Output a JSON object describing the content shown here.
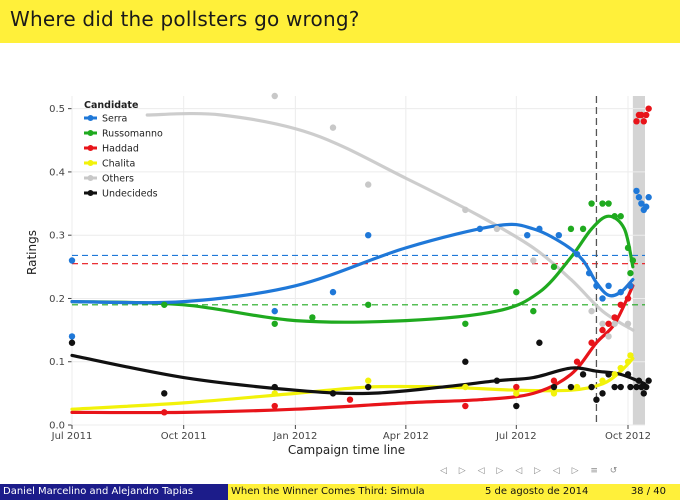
{
  "slide": {
    "title": "Where did the pollsters go wrong?"
  },
  "footer": {
    "authors": "Daniel Marcelino and Alejandro Tapias",
    "talk_title": "When the Winner Comes Third: Simula",
    "date": "5 de agosto de 2014",
    "page": "38 / 40"
  },
  "nav_symbols": [
    "◁",
    "▷",
    "◁",
    "▷",
    "◁",
    "▷",
    "◁",
    "▷",
    "≡",
    "↺"
  ],
  "colors": {
    "title_bar": "#fff03a",
    "footer_left": "#1c1c8a",
    "Serra": "#1f78d8",
    "Russomanno": "#1faa1f",
    "Haddad": "#e8141a",
    "Chalita": "#f2f20a",
    "Others": "#c8c8c8",
    "Undecideds": "#111111"
  },
  "chart_data": {
    "type": "scatter",
    "title": "",
    "xlabel": "Campaign time line",
    "ylabel": "Ratings",
    "x_ticks": [
      "Jul 2011",
      "Oct 2011",
      "Jan 2012",
      "Apr 2012",
      "Jul 2012",
      "Oct 2012"
    ],
    "x_range": [
      "2011-07-01",
      "2012-10-15"
    ],
    "y_ticks": [
      "0.0",
      "0.1",
      "0.2",
      "0.3",
      "0.4",
      "0.5"
    ],
    "ylim": [
      0,
      0.52
    ],
    "legend_title": "Candidate",
    "legend_position": "top-left",
    "grid": true,
    "election_date": "2012-09-05",
    "shaded_region": [
      "2012-10-05",
      "2012-10-20"
    ],
    "reference_lines": [
      {
        "series": "Serra",
        "y": 0.268
      },
      {
        "series": "Haddad",
        "y": 0.255
      },
      {
        "series": "Russomanno",
        "y": 0.19
      }
    ],
    "series": [
      {
        "name": "Serra",
        "points": [
          [
            "2011-07-01",
            0.26
          ],
          [
            "2011-07-01",
            0.14
          ],
          [
            "2011-12-15",
            0.18
          ],
          [
            "2012-02-01",
            0.21
          ],
          [
            "2012-03-01",
            0.3
          ],
          [
            "2012-06-01",
            0.31
          ],
          [
            "2012-07-10",
            0.3
          ],
          [
            "2012-07-20",
            0.31
          ],
          [
            "2012-08-05",
            0.3
          ],
          [
            "2012-08-20",
            0.27
          ],
          [
            "2012-08-30",
            0.24
          ],
          [
            "2012-09-05",
            0.22
          ],
          [
            "2012-09-10",
            0.2
          ],
          [
            "2012-09-15",
            0.22
          ],
          [
            "2012-09-25",
            0.21
          ],
          [
            "2012-10-03",
            0.22
          ],
          [
            "2012-10-08",
            0.37
          ],
          [
            "2012-10-10",
            0.36
          ],
          [
            "2012-10-12",
            0.35
          ],
          [
            "2012-10-14",
            0.34
          ],
          [
            "2012-10-16",
            0.345
          ],
          [
            "2012-10-18",
            0.36
          ]
        ],
        "trend": [
          [
            "2011-07-01",
            0.195
          ],
          [
            "2011-10-01",
            0.195
          ],
          [
            "2012-01-01",
            0.22
          ],
          [
            "2012-04-01",
            0.28
          ],
          [
            "2012-06-15",
            0.315
          ],
          [
            "2012-07-15",
            0.31
          ],
          [
            "2012-08-10",
            0.285
          ],
          [
            "2012-08-25",
            0.26
          ],
          [
            "2012-09-05",
            0.225
          ],
          [
            "2012-09-15",
            0.205
          ],
          [
            "2012-09-25",
            0.21
          ],
          [
            "2012-10-05",
            0.23
          ]
        ]
      },
      {
        "name": "Russomanno",
        "points": [
          [
            "2011-09-15",
            0.19
          ],
          [
            "2011-12-15",
            0.16
          ],
          [
            "2012-01-15",
            0.17
          ],
          [
            "2012-03-01",
            0.19
          ],
          [
            "2012-05-20",
            0.16
          ],
          [
            "2012-07-01",
            0.21
          ],
          [
            "2012-07-15",
            0.18
          ],
          [
            "2012-08-01",
            0.25
          ],
          [
            "2012-08-15",
            0.31
          ],
          [
            "2012-08-25",
            0.31
          ],
          [
            "2012-09-01",
            0.35
          ],
          [
            "2012-09-10",
            0.35
          ],
          [
            "2012-09-15",
            0.35
          ],
          [
            "2012-09-20",
            0.33
          ],
          [
            "2012-09-25",
            0.33
          ],
          [
            "2012-10-01",
            0.28
          ],
          [
            "2012-10-03",
            0.24
          ],
          [
            "2012-10-05",
            0.26
          ]
        ],
        "trend": [
          [
            "2011-07-01",
            0.195
          ],
          [
            "2011-10-01",
            0.19
          ],
          [
            "2012-01-01",
            0.165
          ],
          [
            "2012-04-01",
            0.165
          ],
          [
            "2012-06-15",
            0.18
          ],
          [
            "2012-07-20",
            0.21
          ],
          [
            "2012-08-15",
            0.265
          ],
          [
            "2012-09-01",
            0.31
          ],
          [
            "2012-09-15",
            0.33
          ],
          [
            "2012-09-28",
            0.31
          ],
          [
            "2012-10-05",
            0.25
          ]
        ]
      },
      {
        "name": "Haddad",
        "points": [
          [
            "2011-09-15",
            0.02
          ],
          [
            "2011-12-15",
            0.03
          ],
          [
            "2012-02-15",
            0.04
          ],
          [
            "2012-05-20",
            0.03
          ],
          [
            "2012-07-01",
            0.06
          ],
          [
            "2012-08-01",
            0.07
          ],
          [
            "2012-08-20",
            0.1
          ],
          [
            "2012-09-01",
            0.13
          ],
          [
            "2012-09-10",
            0.15
          ],
          [
            "2012-09-15",
            0.16
          ],
          [
            "2012-09-20",
            0.17
          ],
          [
            "2012-09-25",
            0.19
          ],
          [
            "2012-10-01",
            0.2
          ],
          [
            "2012-10-03",
            0.22
          ],
          [
            "2012-10-08",
            0.48
          ],
          [
            "2012-10-10",
            0.49
          ],
          [
            "2012-10-12",
            0.49
          ],
          [
            "2012-10-14",
            0.48
          ],
          [
            "2012-10-16",
            0.49
          ],
          [
            "2012-10-18",
            0.5
          ]
        ],
        "trend": [
          [
            "2011-07-01",
            0.02
          ],
          [
            "2011-10-01",
            0.02
          ],
          [
            "2012-01-01",
            0.025
          ],
          [
            "2012-04-01",
            0.035
          ],
          [
            "2012-06-01",
            0.04
          ],
          [
            "2012-07-15",
            0.05
          ],
          [
            "2012-08-15",
            0.08
          ],
          [
            "2012-09-05",
            0.13
          ],
          [
            "2012-09-20",
            0.16
          ],
          [
            "2012-10-05",
            0.22
          ]
        ]
      },
      {
        "name": "Chalita",
        "points": [
          [
            "2011-12-15",
            0.05
          ],
          [
            "2012-03-01",
            0.07
          ],
          [
            "2012-05-20",
            0.06
          ],
          [
            "2012-07-01",
            0.05
          ],
          [
            "2012-08-01",
            0.05
          ],
          [
            "2012-08-20",
            0.06
          ],
          [
            "2012-09-01",
            0.06
          ],
          [
            "2012-09-10",
            0.07
          ],
          [
            "2012-09-20",
            0.08
          ],
          [
            "2012-09-25",
            0.09
          ],
          [
            "2012-10-01",
            0.1
          ],
          [
            "2012-10-03",
            0.11
          ]
        ],
        "trend": [
          [
            "2011-07-01",
            0.025
          ],
          [
            "2011-10-01",
            0.035
          ],
          [
            "2012-01-01",
            0.05
          ],
          [
            "2012-03-01",
            0.06
          ],
          [
            "2012-05-01",
            0.06
          ],
          [
            "2012-07-01",
            0.055
          ],
          [
            "2012-08-15",
            0.055
          ],
          [
            "2012-09-10",
            0.065
          ],
          [
            "2012-09-25",
            0.085
          ],
          [
            "2012-10-05",
            0.105
          ]
        ]
      },
      {
        "name": "Others",
        "points": [
          [
            "2011-12-15",
            0.52
          ],
          [
            "2012-02-01",
            0.47
          ],
          [
            "2012-03-01",
            0.38
          ],
          [
            "2012-05-20",
            0.34
          ],
          [
            "2012-06-15",
            0.31
          ],
          [
            "2012-07-15",
            0.26
          ],
          [
            "2012-08-20",
            0.27
          ],
          [
            "2012-09-01",
            0.18
          ],
          [
            "2012-09-10",
            0.16
          ],
          [
            "2012-09-15",
            0.14
          ],
          [
            "2012-09-20",
            0.16
          ],
          [
            "2012-10-01",
            0.16
          ]
        ],
        "trend": [
          [
            "2011-09-01",
            0.49
          ],
          [
            "2011-11-01",
            0.49
          ],
          [
            "2012-01-15",
            0.46
          ],
          [
            "2012-04-01",
            0.39
          ],
          [
            "2012-06-01",
            0.33
          ],
          [
            "2012-07-15",
            0.28
          ],
          [
            "2012-08-15",
            0.23
          ],
          [
            "2012-09-10",
            0.18
          ],
          [
            "2012-10-05",
            0.15
          ]
        ]
      },
      {
        "name": "Undecideds",
        "points": [
          [
            "2011-07-01",
            0.13
          ],
          [
            "2011-09-15",
            0.05
          ],
          [
            "2011-12-15",
            0.06
          ],
          [
            "2012-02-01",
            0.05
          ],
          [
            "2012-03-01",
            0.06
          ],
          [
            "2012-05-20",
            0.1
          ],
          [
            "2012-06-15",
            0.07
          ],
          [
            "2012-07-01",
            0.03
          ],
          [
            "2012-07-20",
            0.13
          ],
          [
            "2012-08-01",
            0.06
          ],
          [
            "2012-08-15",
            0.06
          ],
          [
            "2012-08-25",
            0.08
          ],
          [
            "2012-09-01",
            0.06
          ],
          [
            "2012-09-05",
            0.04
          ],
          [
            "2012-09-10",
            0.05
          ],
          [
            "2012-09-15",
            0.08
          ],
          [
            "2012-09-20",
            0.06
          ],
          [
            "2012-09-25",
            0.06
          ],
          [
            "2012-10-01",
            0.08
          ],
          [
            "2012-10-03",
            0.06
          ],
          [
            "2012-10-08",
            0.06
          ],
          [
            "2012-10-10",
            0.07
          ],
          [
            "2012-10-12",
            0.06
          ],
          [
            "2012-10-14",
            0.05
          ],
          [
            "2012-10-16",
            0.06
          ],
          [
            "2012-10-18",
            0.07
          ]
        ],
        "trend": [
          [
            "2011-07-01",
            0.11
          ],
          [
            "2011-10-01",
            0.075
          ],
          [
            "2012-01-01",
            0.055
          ],
          [
            "2012-03-01",
            0.05
          ],
          [
            "2012-05-01",
            0.06
          ],
          [
            "2012-06-15",
            0.07
          ],
          [
            "2012-07-15",
            0.075
          ],
          [
            "2012-08-15",
            0.09
          ],
          [
            "2012-09-05",
            0.085
          ],
          [
            "2012-09-25",
            0.08
          ],
          [
            "2012-10-15",
            0.065
          ]
        ]
      }
    ]
  }
}
